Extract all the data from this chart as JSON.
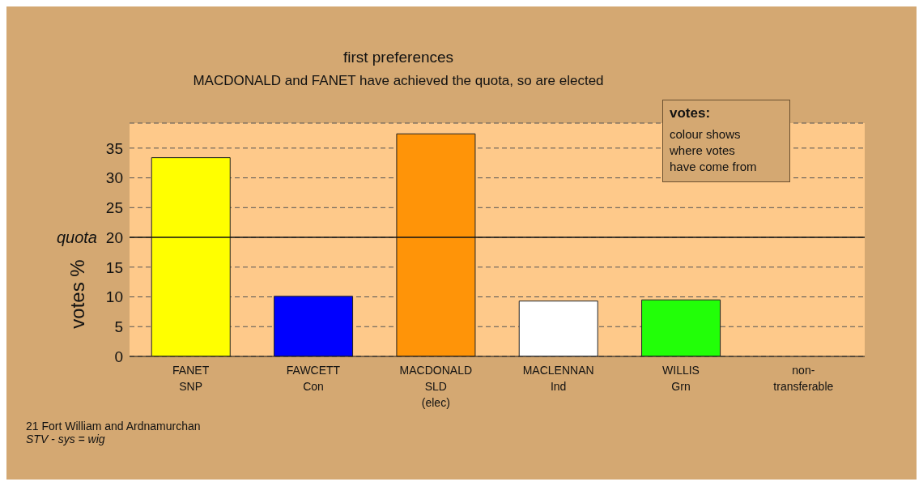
{
  "chart_data": {
    "type": "bar",
    "title": "first preferences",
    "subtitle": "MACDONALD and FANET have achieved the quota, so are elected",
    "ylabel": "votes %",
    "categories": [
      "FANET\nSNP",
      "FAWCETT\nCon",
      "MACDONALD\nSLD\n(elec)",
      "MACLENNAN\nInd",
      "WILLIS\nGrn",
      "non-\ntransferable"
    ],
    "values": [
      33.4,
      10.1,
      37.4,
      9.3,
      9.5,
      0
    ],
    "colors": [
      "#ffff00",
      "#0000ff",
      "#ff9408",
      "#ffffff",
      "#22ff08",
      "#808080"
    ],
    "ylim": [
      0,
      39.2
    ],
    "yticks": [
      0,
      5,
      10,
      15,
      20,
      25,
      30,
      35
    ],
    "grid": "y",
    "ref_lines": [
      {
        "axis": "y",
        "value": 20,
        "label": "quota"
      }
    ],
    "annotations": [
      "votes:",
      "colour shows\nwhere votes\nhave come from",
      "21 Fort William and Ardnamurchan",
      "STV - sys = wig"
    ]
  }
}
